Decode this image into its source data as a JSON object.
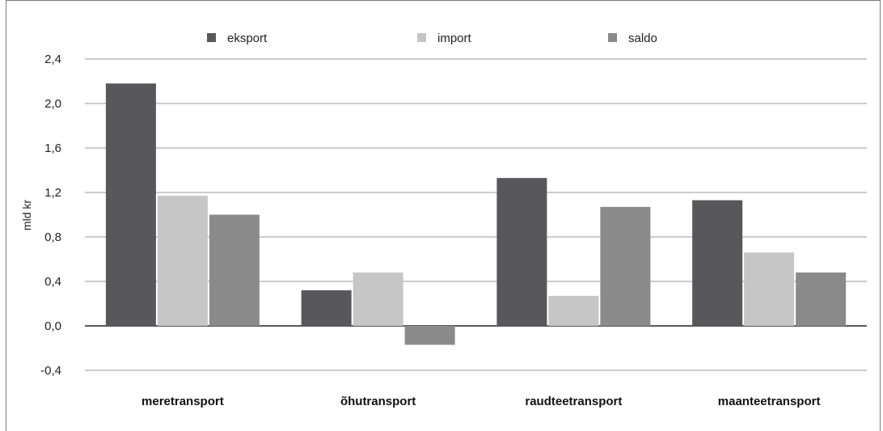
{
  "chart_data": {
    "type": "bar",
    "categories": [
      "meretransport",
      "õhutransport",
      "raudteetransport",
      "maanteetransport"
    ],
    "series": [
      {
        "name": "eksport",
        "values": [
          2.18,
          0.32,
          1.33,
          1.13
        ],
        "color": "#58585a"
      },
      {
        "name": "import",
        "values": [
          1.17,
          0.48,
          0.27,
          0.66
        ],
        "color": "#c6c6c6"
      },
      {
        "name": "saldo",
        "values": [
          1.0,
          -0.17,
          1.07,
          0.48
        ],
        "color": "#8a8a8a"
      }
    ],
    "yticks": [
      "2,4",
      "2,0",
      "1,6",
      "1,2",
      "0,8",
      "0,4",
      "0,0",
      "-0,4"
    ],
    "ytick_values": [
      2.4,
      2.0,
      1.6,
      1.2,
      0.8,
      0.4,
      0.0,
      -0.4
    ],
    "ylabel": "mld kr",
    "ylim": [
      -0.4,
      2.4
    ],
    "grid": true,
    "legend_position": "top"
  }
}
